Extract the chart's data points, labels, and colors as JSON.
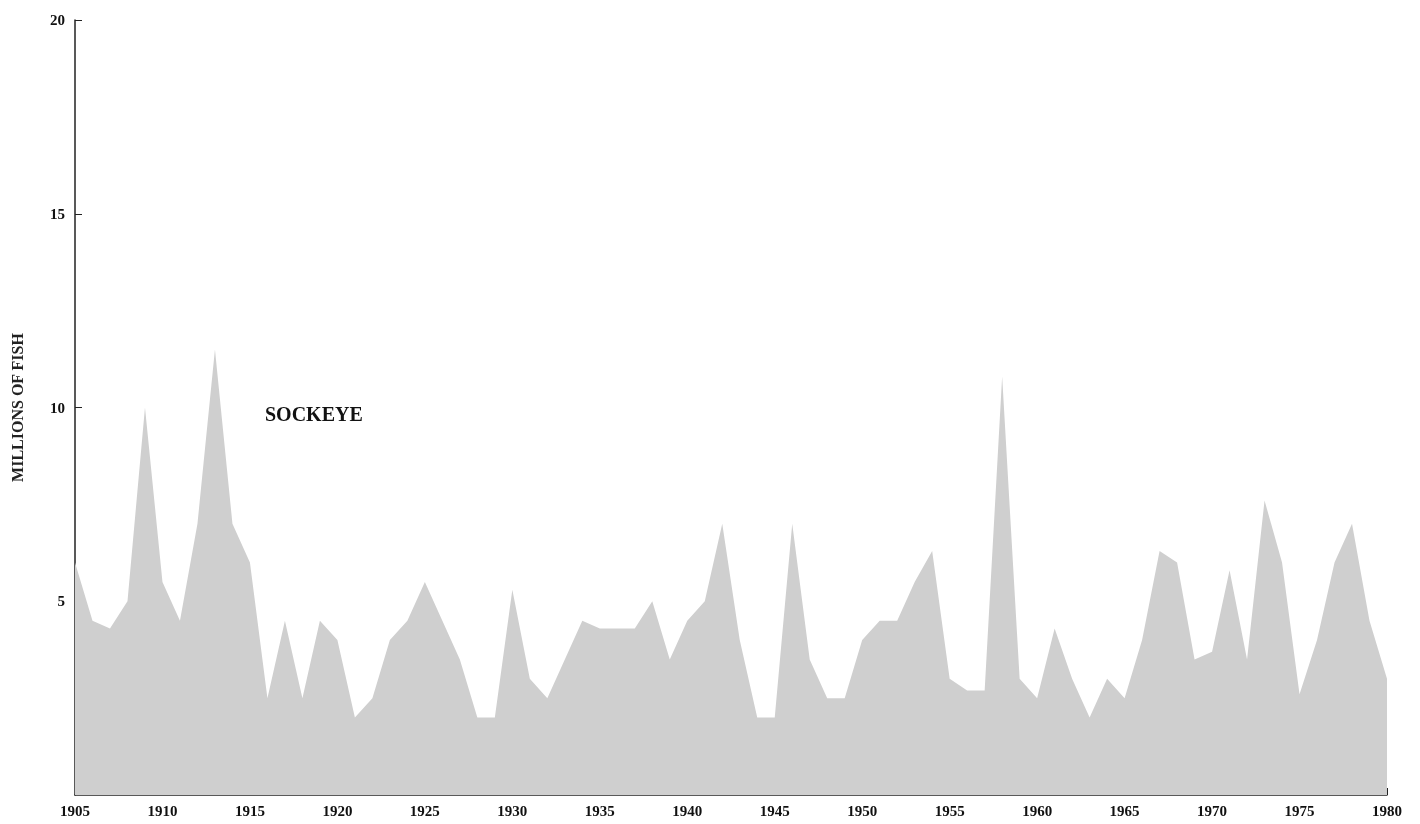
{
  "chart_data": {
    "type": "area",
    "ylabel": "MILLIONS OF FISH",
    "x": [
      1905,
      1906,
      1907,
      1908,
      1909,
      1910,
      1911,
      1912,
      1913,
      1914,
      1915,
      1916,
      1917,
      1918,
      1919,
      1920,
      1921,
      1922,
      1923,
      1924,
      1925,
      1926,
      1927,
      1928,
      1929,
      1930,
      1931,
      1932,
      1933,
      1934,
      1935,
      1936,
      1937,
      1938,
      1939,
      1940,
      1941,
      1942,
      1943,
      1944,
      1945,
      1946,
      1947,
      1948,
      1949,
      1950,
      1951,
      1952,
      1953,
      1954,
      1955,
      1956,
      1957,
      1958,
      1959,
      1960,
      1961,
      1962,
      1963,
      1964,
      1965,
      1966,
      1967,
      1968,
      1969,
      1970,
      1971,
      1972,
      1973,
      1974,
      1975,
      1976,
      1977,
      1978,
      1979,
      1980
    ],
    "series": [
      {
        "name": "SOCKEYE",
        "color": "#cfcfcf",
        "values": [
          6,
          4.5,
          4.3,
          5,
          10,
          5.5,
          4.5,
          7,
          11.5,
          7,
          6,
          2.5,
          4.5,
          2.5,
          4.5,
          4,
          2,
          2.5,
          4,
          4.5,
          5.5,
          4.5,
          3.5,
          2,
          2,
          5.3,
          3,
          2.5,
          3.5,
          4.5,
          4.3,
          4.3,
          4.3,
          5,
          3.5,
          4.5,
          5,
          7,
          4,
          2,
          2,
          7,
          3.5,
          2.5,
          2.5,
          4,
          4.5,
          4.5,
          5.5,
          6.3,
          3,
          2.7,
          2.7,
          10.8,
          3,
          2.5,
          4.3,
          3,
          2,
          3,
          2.5,
          4,
          6.3,
          6,
          3.5,
          3.7,
          5.8,
          3.5,
          7.6,
          6,
          2.6,
          4,
          6,
          7,
          4.5,
          3
        ]
      }
    ],
    "xlim": [
      1905,
      1980
    ],
    "xticks": [
      1905,
      1910,
      1915,
      1920,
      1925,
      1930,
      1935,
      1940,
      1945,
      1950,
      1955,
      1960,
      1965,
      1970,
      1975,
      1980
    ],
    "ylim": [
      0,
      20
    ],
    "yticks": [
      5,
      10,
      15,
      20
    ],
    "grid": false,
    "legend": false,
    "marker": "none"
  }
}
